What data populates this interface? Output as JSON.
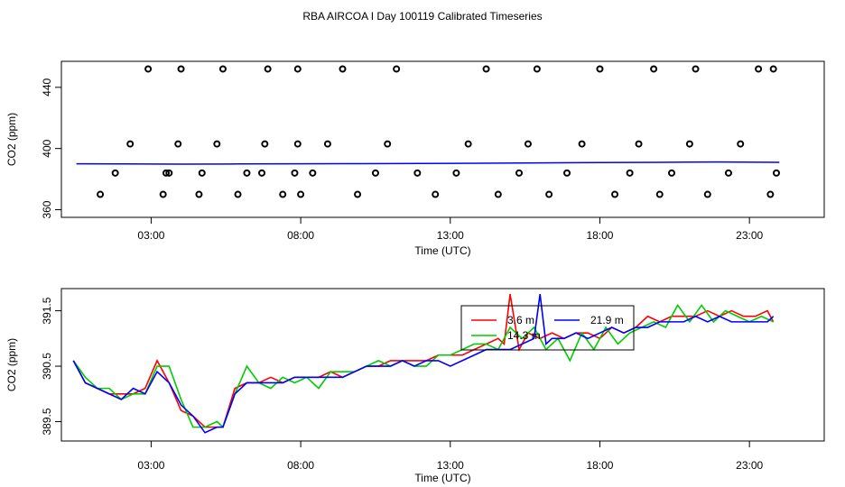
{
  "title": "RBA AIRCOA I  Day 100119  Calibrated Timeseries",
  "chart_data": [
    {
      "type": "scatter",
      "xlabel": "Time (UTC)",
      "ylabel": "CO2 (ppm)",
      "xlim": [
        0,
        25.5
      ],
      "ylim": [
        355,
        457
      ],
      "x_tick_labels": [
        "03:00",
        "08:00",
        "13:00",
        "18:00",
        "23:00"
      ],
      "x_tick_values": [
        3,
        8,
        13,
        18,
        23
      ],
      "y_tick_values": [
        360,
        400,
        440
      ],
      "y_tick_labels": [
        "360",
        "400",
        "440"
      ],
      "flat_series": {
        "color": "#0000ff",
        "x": [
          0.5,
          2,
          4,
          6,
          8,
          10,
          12,
          14,
          16,
          18,
          20,
          22,
          24
        ],
        "y": [
          390.0,
          389.9,
          389.8,
          389.9,
          390.0,
          390.1,
          390.2,
          390.4,
          390.6,
          390.8,
          391.0,
          391.2,
          391.0
        ]
      },
      "points": {
        "x": [
          1.3,
          1.8,
          2.3,
          2.9,
          3.4,
          3.6,
          3.9,
          4.0,
          4.6,
          3.5,
          4.7,
          5.2,
          5.4,
          5.9,
          6.2,
          6.8,
          6.9,
          6.7,
          7.4,
          7.8,
          7.9,
          7.9,
          8.0,
          8.4,
          8.9,
          9.4,
          9.9,
          10.5,
          10.9,
          11.2,
          11.9,
          12.5,
          13.2,
          13.6,
          14.2,
          14.6,
          15.3,
          15.6,
          15.9,
          16.3,
          16.9,
          17.4,
          18.0,
          18.5,
          19.0,
          19.3,
          19.8,
          20.0,
          20.4,
          21.0,
          21.2,
          21.6,
          22.3,
          22.7,
          23.3,
          23.7,
          23.9,
          23.8
        ],
        "y": [
          370,
          384,
          403,
          452,
          370,
          384,
          403,
          452,
          370,
          384,
          384,
          403,
          452,
          370,
          384,
          403,
          452,
          384,
          370,
          384,
          403,
          452,
          370,
          384,
          403,
          452,
          370,
          384,
          403,
          452,
          384,
          370,
          384,
          403,
          452,
          370,
          384,
          403,
          452,
          370,
          384,
          403,
          452,
          370,
          384,
          403,
          452,
          370,
          384,
          403,
          452,
          370,
          384,
          403,
          452,
          370,
          384,
          452
        ]
      }
    },
    {
      "type": "line",
      "xlabel": "Time (UTC)",
      "ylabel": "CO2 (ppm)",
      "xlim": [
        0,
        25.5
      ],
      "ylim": [
        389.15,
        391.9
      ],
      "x_tick_labels": [
        "03:00",
        "08:00",
        "13:00",
        "18:00",
        "23:00"
      ],
      "x_tick_values": [
        3,
        8,
        13,
        18,
        23
      ],
      "y_tick_values": [
        389.5,
        390.5,
        391.5
      ],
      "y_tick_labels": [
        "389.5",
        "390.5",
        "391.5"
      ],
      "series": [
        {
          "name": "3.6 m",
          "color": "#ff0000",
          "x": [
            0.4,
            0.8,
            1.2,
            1.6,
            2.0,
            2.4,
            2.8,
            3.2,
            3.6,
            4.0,
            4.4,
            4.8,
            5.2,
            5.4,
            5.8,
            6.2,
            6.6,
            7.0,
            7.4,
            7.8,
            8.2,
            8.6,
            9.0,
            9.4,
            9.8,
            10.2,
            10.6,
            11.0,
            11.4,
            11.8,
            12.2,
            12.6,
            13.0,
            13.4,
            13.8,
            14.2,
            14.6,
            14.8,
            15.0,
            15.3,
            15.6,
            16.0,
            16.4,
            16.8,
            17.2,
            17.6,
            18.0,
            18.4,
            18.8,
            19.2,
            19.6,
            20.0,
            20.4,
            20.8,
            21.2,
            21.6,
            22.0,
            22.4,
            22.8,
            23.2,
            23.6,
            23.8
          ],
          "y": [
            390.6,
            390.2,
            390.1,
            390.0,
            390.0,
            390.0,
            390.1,
            390.6,
            390.2,
            389.7,
            389.6,
            389.4,
            389.4,
            389.4,
            390.1,
            390.2,
            390.2,
            390.3,
            390.2,
            390.3,
            390.3,
            390.3,
            390.4,
            390.3,
            390.4,
            390.5,
            390.5,
            390.6,
            390.6,
            390.6,
            390.6,
            390.7,
            390.7,
            390.7,
            390.8,
            390.9,
            391.0,
            390.9,
            391.8,
            390.8,
            391.1,
            391.0,
            391.1,
            391.0,
            391.1,
            391.1,
            391.0,
            391.2,
            391.1,
            391.2,
            391.4,
            391.3,
            391.4,
            391.4,
            391.4,
            391.5,
            391.4,
            391.5,
            391.4,
            391.4,
            391.5,
            391.3
          ]
        },
        {
          "name": "14.3 m",
          "color": "#00cc00",
          "x": [
            0.4,
            0.8,
            1.2,
            1.6,
            2.0,
            2.4,
            2.8,
            3.2,
            3.6,
            4.0,
            4.4,
            4.8,
            5.2,
            5.4,
            5.8,
            6.2,
            6.6,
            7.0,
            7.4,
            7.8,
            8.2,
            8.6,
            9.0,
            9.4,
            9.8,
            10.2,
            10.6,
            11.0,
            11.4,
            11.8,
            12.2,
            12.6,
            13.0,
            13.4,
            13.8,
            14.2,
            14.6,
            15.0,
            15.4,
            15.8,
            16.2,
            16.6,
            17.0,
            17.4,
            17.8,
            18.2,
            18.6,
            19.0,
            19.4,
            19.8,
            20.2,
            20.6,
            21.0,
            21.4,
            21.8,
            22.2,
            22.6,
            23.0,
            23.4,
            23.8
          ],
          "y": [
            390.6,
            390.3,
            390.1,
            390.1,
            389.9,
            390.0,
            390.0,
            390.5,
            390.5,
            389.9,
            389.4,
            389.4,
            389.5,
            389.4,
            390.0,
            390.5,
            390.2,
            390.1,
            390.3,
            390.2,
            390.3,
            390.1,
            390.4,
            390.4,
            390.4,
            390.5,
            390.6,
            390.5,
            390.6,
            390.5,
            390.5,
            390.7,
            390.7,
            390.8,
            390.9,
            390.9,
            390.8,
            391.2,
            391.0,
            391.2,
            390.8,
            391.0,
            390.6,
            391.1,
            390.8,
            391.2,
            390.9,
            391.1,
            391.2,
            391.3,
            391.2,
            391.6,
            391.3,
            391.6,
            391.3,
            391.5,
            391.4,
            391.3,
            391.4,
            391.3
          ]
        },
        {
          "name": "21.9 m",
          "color": "#0000ff",
          "x": [
            0.4,
            0.8,
            1.2,
            1.6,
            2.0,
            2.4,
            2.8,
            3.2,
            3.6,
            4.0,
            4.4,
            4.8,
            5.2,
            5.4,
            5.8,
            6.2,
            6.6,
            7.0,
            7.4,
            7.8,
            8.2,
            8.6,
            9.0,
            9.4,
            9.8,
            10.2,
            10.6,
            11.0,
            11.4,
            11.8,
            12.2,
            12.6,
            13.0,
            13.4,
            13.8,
            14.2,
            14.6,
            15.0,
            15.4,
            15.8,
            16.0,
            16.2,
            16.4,
            16.8,
            17.2,
            17.6,
            18.0,
            18.4,
            18.8,
            19.2,
            19.6,
            20.0,
            20.4,
            20.8,
            21.2,
            21.6,
            22.0,
            22.4,
            22.8,
            23.2,
            23.6,
            23.8
          ],
          "y": [
            390.6,
            390.2,
            390.1,
            390.0,
            389.9,
            390.1,
            390.0,
            390.4,
            390.2,
            389.8,
            389.6,
            389.3,
            389.4,
            389.4,
            390.0,
            390.2,
            390.2,
            390.2,
            390.2,
            390.3,
            390.3,
            390.3,
            390.3,
            390.3,
            390.4,
            390.5,
            390.5,
            390.5,
            390.6,
            390.5,
            390.6,
            390.6,
            390.5,
            390.6,
            390.7,
            390.8,
            390.8,
            390.8,
            390.9,
            391.0,
            391.8,
            390.9,
            391.0,
            391.0,
            391.1,
            391.0,
            391.1,
            391.2,
            391.1,
            391.2,
            391.2,
            391.3,
            391.3,
            391.3,
            391.4,
            391.3,
            391.4,
            391.3,
            391.3,
            391.3,
            391.3,
            391.4
          ]
        }
      ]
    }
  ]
}
